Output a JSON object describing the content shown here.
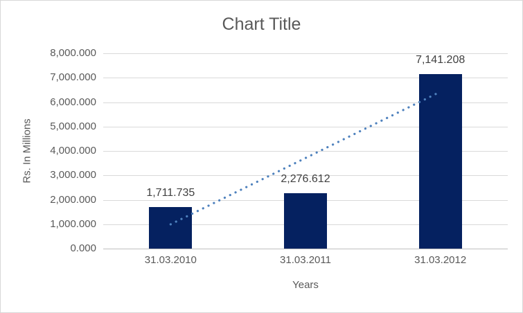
{
  "chart_data": {
    "type": "bar",
    "title": "Chart Title",
    "categories": [
      "31.03.2010",
      "31.03.2011",
      "31.03.2012"
    ],
    "values": [
      1711.735,
      2276.612,
      7141.208
    ],
    "value_labels": [
      "1,711.735",
      "2,276.612",
      "7,141.208"
    ],
    "xlabel": "Years",
    "ylabel": "Rs. In Millions",
    "ylim": [
      0,
      8000
    ],
    "ytick_step": 1000,
    "ytick_labels": [
      "0.000",
      "1,000.000",
      "2,000.000",
      "3,000.000",
      "4,000.000",
      "5,000.000",
      "6,000.000",
      "7,000.000",
      "8,000.000"
    ],
    "grid": true,
    "legend": false,
    "trendline": {
      "type": "linear",
      "style": "dotted"
    },
    "colors": {
      "bar": "#052160",
      "trendline": "#4e81bd",
      "gridline": "#d9d9d9",
      "axis_line": "#bfbfbf",
      "axis_text": "#595959",
      "title_text": "#595959",
      "data_label": "#404040",
      "border": "#d7d7d7"
    }
  }
}
